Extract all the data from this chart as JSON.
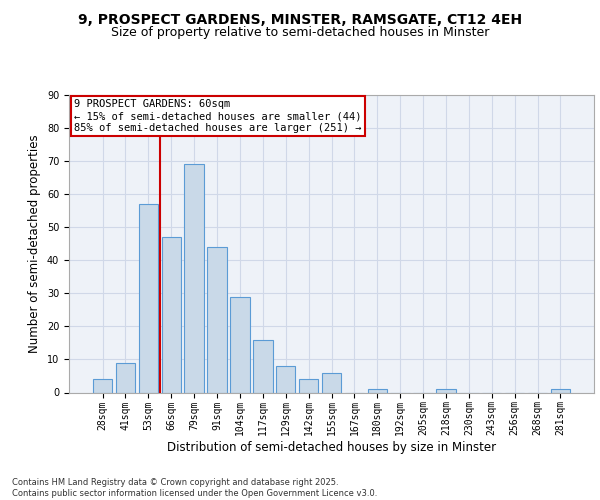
{
  "title1": "9, PROSPECT GARDENS, MINSTER, RAMSGATE, CT12 4EH",
  "title2": "Size of property relative to semi-detached houses in Minster",
  "xlabel": "Distribution of semi-detached houses by size in Minster",
  "ylabel": "Number of semi-detached properties",
  "categories": [
    "28sqm",
    "41sqm",
    "53sqm",
    "66sqm",
    "79sqm",
    "91sqm",
    "104sqm",
    "117sqm",
    "129sqm",
    "142sqm",
    "155sqm",
    "167sqm",
    "180sqm",
    "192sqm",
    "205sqm",
    "218sqm",
    "230sqm",
    "243sqm",
    "256sqm",
    "268sqm",
    "281sqm"
  ],
  "values": [
    4,
    9,
    57,
    47,
    69,
    44,
    29,
    16,
    8,
    4,
    6,
    0,
    1,
    0,
    0,
    1,
    0,
    0,
    0,
    0,
    1
  ],
  "bar_color": "#c9d9e8",
  "bar_edge_color": "#5b9bd5",
  "vline_x": 2.5,
  "vline_color": "#cc0000",
  "annotation_text": "9 PROSPECT GARDENS: 60sqm\n← 15% of semi-detached houses are smaller (44)\n85% of semi-detached houses are larger (251) →",
  "box_edge_color": "#cc0000",
  "ylim": [
    0,
    90
  ],
  "yticks": [
    0,
    10,
    20,
    30,
    40,
    50,
    60,
    70,
    80,
    90
  ],
  "grid_color": "#d0d8e8",
  "bg_color": "#eef2f8",
  "footer": "Contains HM Land Registry data © Crown copyright and database right 2025.\nContains public sector information licensed under the Open Government Licence v3.0.",
  "title_fontsize": 10,
  "subtitle_fontsize": 9,
  "axis_label_fontsize": 8.5,
  "tick_fontsize": 7,
  "annotation_fontsize": 7.5,
  "footer_fontsize": 6
}
